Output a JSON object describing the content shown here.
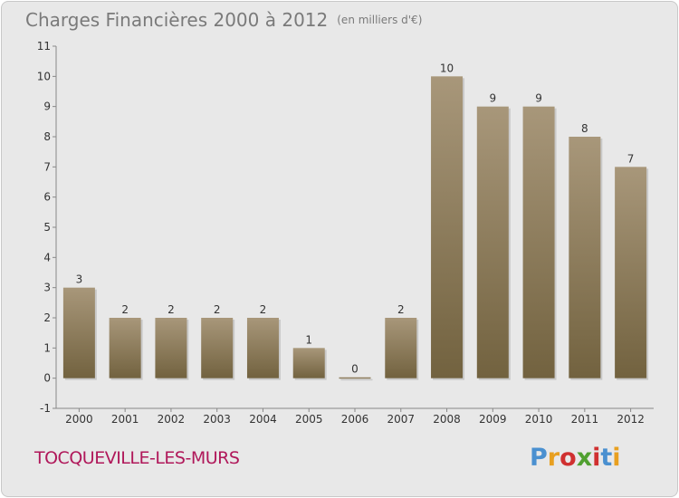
{
  "header": {
    "title": "Charges Financières 2000 à 2012",
    "unit": "(en milliers d'€)"
  },
  "footer": {
    "place": "TOCQUEVILLE-LES-MURS",
    "logo": "Proxiti"
  },
  "colors": {
    "bar_top": "#a8977a",
    "bar_bottom": "#72623f",
    "place_text": "#b0185a",
    "logo_letters": [
      "#4a90d0",
      "#e8a020",
      "#d03030",
      "#50a030",
      "#d03030",
      "#4a90d0",
      "#e8a020"
    ]
  },
  "chart_data": {
    "type": "bar",
    "title": "Charges Financières 2000 à 2012",
    "xlabel": "",
    "ylabel": "",
    "categories": [
      "2000",
      "2001",
      "2002",
      "2003",
      "2004",
      "2005",
      "2006",
      "2007",
      "2008",
      "2009",
      "2010",
      "2011",
      "2012"
    ],
    "values": [
      3,
      2,
      2,
      2,
      2,
      1,
      0,
      2,
      10,
      9,
      9,
      8,
      7
    ],
    "data_labels": [
      "3",
      "2",
      "2",
      "2",
      "2",
      "1",
      "0",
      "2",
      "10",
      "9",
      "9",
      "8",
      "7"
    ],
    "yticks": [
      "-1",
      "0",
      "1",
      "2",
      "3",
      "4",
      "5",
      "6",
      "7",
      "8",
      "9",
      "10",
      "11"
    ],
    "ylim": [
      -1,
      11
    ],
    "grid": false,
    "legend": "none"
  }
}
